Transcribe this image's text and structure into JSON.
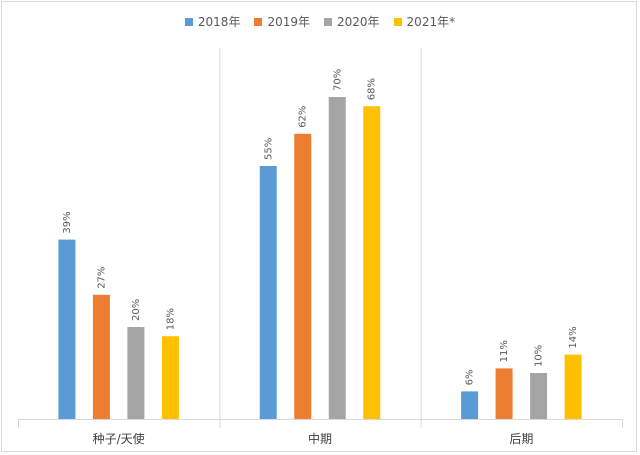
{
  "chart_data": {
    "type": "bar",
    "categories": [
      "种子/天使",
      "中期",
      "后期"
    ],
    "series": [
      {
        "name": "2018年",
        "color": "#5b9bd5",
        "values": [
          39,
          55,
          6
        ],
        "labels": [
          "39%",
          "55%",
          "6%"
        ]
      },
      {
        "name": "2019年",
        "color": "#ed7d31",
        "values": [
          27,
          62,
          11
        ],
        "labels": [
          "27%",
          "62%",
          "11%"
        ]
      },
      {
        "name": "2020年",
        "color": "#a5a5a5",
        "values": [
          20,
          70,
          10
        ],
        "labels": [
          "20%",
          "70%",
          "10%"
        ]
      },
      {
        "name": "2021年*",
        "color": "#ffc000",
        "values": [
          18,
          68,
          14
        ],
        "labels": [
          "18%",
          "68%",
          "14%"
        ]
      }
    ],
    "ylim": [
      0,
      70
    ],
    "legend_position": "top",
    "grid": false,
    "title": "",
    "xlabel": "",
    "ylabel": ""
  }
}
